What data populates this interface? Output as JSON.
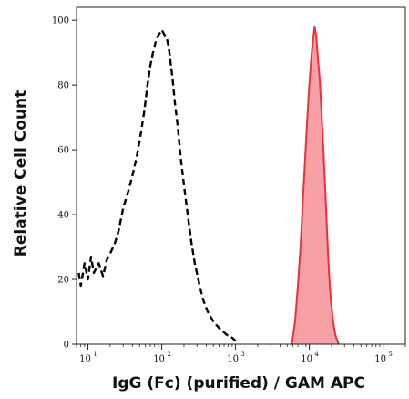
{
  "chart_data": {
    "type": "area",
    "xlabel": "IgG (Fc) (purified) / GAM APC",
    "ylabel": "Relative Cell Count",
    "x_scale": "log",
    "xlim": [
      7,
      200000
    ],
    "ylim": [
      0,
      104
    ],
    "y_ticks": [
      0,
      20,
      40,
      60,
      80,
      100
    ],
    "x_ticks": [
      {
        "value": 10,
        "base": "10",
        "exponent": "1"
      },
      {
        "value": 100,
        "base": "10",
        "exponent": "2"
      },
      {
        "value": 1000,
        "base": "10",
        "exponent": "3"
      },
      {
        "value": 10000,
        "base": "10",
        "exponent": "4"
      },
      {
        "value": 100000,
        "base": "10",
        "exponent": "5"
      }
    ],
    "grid": false,
    "legend": "none",
    "series": [
      {
        "style": "dashed-outline",
        "color": "#000000",
        "x": [
          7.5,
          8,
          9,
          10,
          11,
          12,
          14,
          16,
          18,
          20,
          23,
          26,
          30,
          35,
          40,
          46,
          52,
          58,
          64,
          70,
          76,
          82,
          88,
          94,
          100,
          106,
          112,
          118,
          124,
          130,
          140,
          150,
          165,
          180,
          200,
          225,
          250,
          280,
          320,
          360,
          420,
          500,
          600,
          750,
          900,
          1000
        ],
        "y": [
          22,
          18,
          25,
          20,
          27,
          22,
          25,
          21,
          26,
          28,
          31,
          35,
          42,
          47,
          52,
          58,
          65,
          72,
          80,
          86,
          90,
          93,
          95,
          96,
          97,
          96,
          95,
          94,
          92,
          88,
          82,
          75,
          67,
          58,
          49,
          40,
          32,
          25,
          19,
          14,
          10,
          7,
          5,
          3,
          2,
          1
        ]
      },
      {
        "style": "filled",
        "color": "#e8323a",
        "fill": "#f7a1a6",
        "x": [
          5800,
          6400,
          7000,
          7600,
          8200,
          8800,
          9400,
          10000,
          10600,
          11200,
          11800,
          12400,
          13000,
          13800,
          14600,
          15500,
          16500,
          17500,
          18500,
          19500,
          21000,
          22500,
          24000,
          25000
        ],
        "y": [
          0,
          7,
          18,
          30,
          45,
          58,
          70,
          80,
          88,
          94,
          98,
          95,
          89,
          82,
          72,
          60,
          47,
          33,
          22,
          14,
          7,
          3,
          1,
          0
        ]
      }
    ]
  }
}
